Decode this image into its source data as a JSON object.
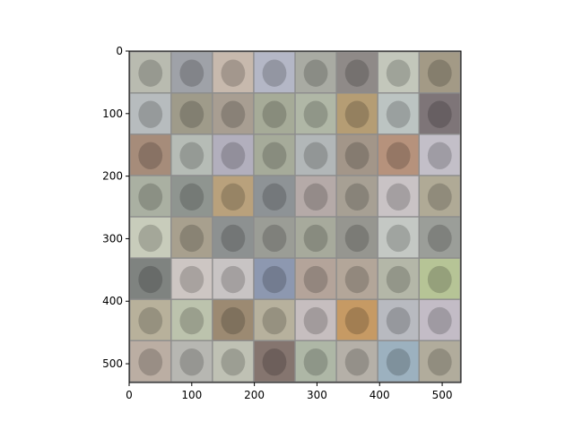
{
  "chart_data": {
    "type": "heatmap",
    "title": "",
    "xlabel": "",
    "ylabel": "",
    "xlim": [
      0,
      530
    ],
    "ylim": [
      530,
      0
    ],
    "x_ticks": [
      0,
      100,
      200,
      300,
      400,
      500
    ],
    "y_ticks": [
      0,
      100,
      200,
      300,
      400,
      500
    ],
    "grid": {
      "rows": 8,
      "cols": 8,
      "tile_data_size": 64,
      "padding": 2,
      "border_color": "#8c8c8c"
    },
    "tiles": [
      [
        "#b9bbb0",
        "#9fa2a8",
        "#c7b9ad",
        "#b4b7c6",
        "#a9aba3",
        "#8f8a88",
        "#c3c7bb",
        "#a39a86"
      ],
      [
        "#b7bcbe",
        "#9f9b8a",
        "#a89e92",
        "#a6ab98",
        "#b0b7a6",
        "#b59d74",
        "#bcc4c2",
        "#7e7578"
      ],
      [
        "#a68c7a",
        "#b6bcb6",
        "#b2afbd",
        "#a6ab9a",
        "#b2b7b8",
        "#a39689",
        "#b6927c",
        "#c3bfc8"
      ],
      [
        "#aab0a2",
        "#8f9590",
        "#b9a17c",
        "#8e9396",
        "#b5aaa8",
        "#a7a094",
        "#c9c3c5",
        "#b0aa96"
      ],
      [
        "#c8ccbb",
        "#a8a08e",
        "#8d9191",
        "#9b9d96",
        "#a7aa9c",
        "#969690",
        "#c4c8c4",
        "#9b9e99"
      ],
      [
        "#7f8380",
        "#cdc6c3",
        "#c8c4c4",
        "#8d98b0",
        "#b4a49a",
        "#b3a699",
        "#b4b7a8",
        "#b6c496"
      ],
      [
        "#b8b19b",
        "#bcc3ad",
        "#9c8a72",
        "#b7b19d",
        "#c6bebf",
        "#c69a64",
        "#b8bac0",
        "#c3bcc6"
      ],
      [
        "#bbaea3",
        "#b7b7b2",
        "#bfc1b4",
        "#85756f",
        "#aeb7a6",
        "#b5b0a8",
        "#9cb1bf",
        "#b1ac9c"
      ]
    ]
  }
}
